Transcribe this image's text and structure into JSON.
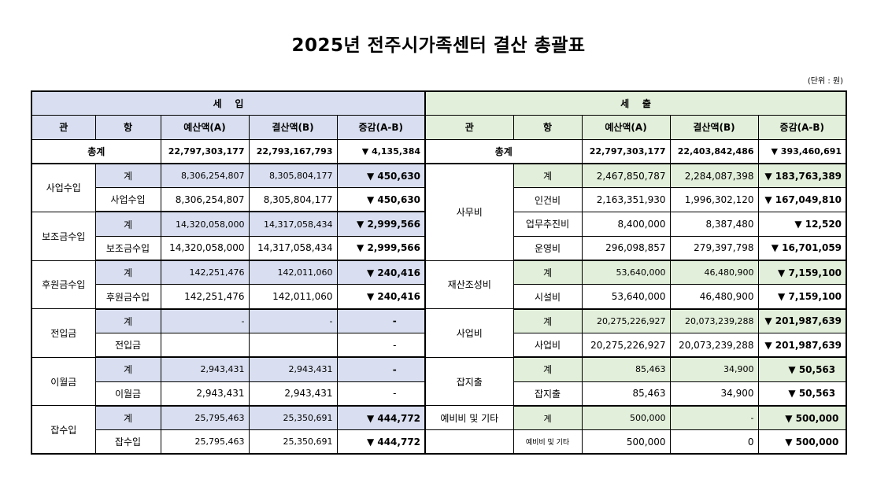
{
  "title": "2025년 전주시가족센터 결산 총괄표",
  "unit": "(단위 : 원)",
  "income": {
    "header": "세    입",
    "cols": [
      "관",
      "항",
      "예산액(A)",
      "결산액(B)",
      "증감(A-B)"
    ],
    "total": {
      "label": "총계",
      "budget": "22,797,303,177",
      "settled": "22,793,167,793",
      "diff": "▼ 4,135,384"
    },
    "groups": [
      {
        "gwan": "사업수입",
        "sub": {
          "hang": "계",
          "budget": "8,306,254,807",
          "settled": "8,305,804,177",
          "diff": "▼ 450,630"
        },
        "item": {
          "hang": "사업수입",
          "budget": "8,306,254,807",
          "settled": "8,305,804,177",
          "diff": "▼ 450,630"
        }
      },
      {
        "gwan": "보조금수입",
        "sub": {
          "hang": "계",
          "budget": "14,320,058,000",
          "settled": "14,317,058,434",
          "diff": "▼ 2,999,566"
        },
        "item": {
          "hang": "보조금수입",
          "budget": "14,320,058,000",
          "settled": "14,317,058,434",
          "diff": "▼ 2,999,566"
        }
      },
      {
        "gwan": "후원금수입",
        "sub": {
          "hang": "계",
          "budget": "142,251,476",
          "settled": "142,011,060",
          "diff": "▼ 240,416"
        },
        "item": {
          "hang": "후원금수입",
          "budget": "142,251,476",
          "settled": "142,011,060",
          "diff": "▼ 240,416"
        }
      },
      {
        "gwan": "전입금",
        "sub": {
          "hang": "계",
          "budget": "-",
          "settled": "-",
          "diff": "-"
        },
        "item": {
          "hang": "전입금",
          "budget": "",
          "settled": "",
          "diff": "-"
        }
      },
      {
        "gwan": "이월금",
        "sub": {
          "hang": "계",
          "budget": "2,943,431",
          "settled": "2,943,431",
          "diff": "-"
        },
        "item": {
          "hang": "이월금",
          "budget": "2,943,431",
          "settled": "2,943,431",
          "diff": "-"
        }
      },
      {
        "gwan": "잡수입",
        "sub": {
          "hang": "계",
          "budget": "25,795,463",
          "settled": "25,350,691",
          "diff": "▼ 444,772"
        },
        "item": {
          "hang": "잡수입",
          "budget": "25,795,463",
          "settled": "25,350,691",
          "diff": "▼ 444,772"
        }
      }
    ]
  },
  "expense": {
    "header": "세    출",
    "cols": [
      "관",
      "항",
      "예산액(A)",
      "결산액(B)",
      "증감(A-B)"
    ],
    "total": {
      "label": "총계",
      "budget": "22,797,303,177",
      "settled": "22,403,842,486",
      "diff": "▼ 393,460,691"
    },
    "office": {
      "gwan": "사무비",
      "rows": [
        {
          "hang": "계",
          "budget": "2,467,850,787",
          "settled": "2,284,087,398",
          "diff": "▼ 183,763,389"
        },
        {
          "hang": "인건비",
          "budget": "2,163,351,930",
          "settled": "1,996,302,120",
          "diff": "▼ 167,049,810"
        },
        {
          "hang": "업무추진비",
          "budget": "8,400,000",
          "settled": "8,387,480",
          "diff": "▼ 12,520"
        },
        {
          "hang": "운영비",
          "budget": "296,098,857",
          "settled": "279,397,798",
          "diff": "▼ 16,701,059"
        }
      ]
    },
    "groups": [
      {
        "gwan": "재산조성비",
        "sub": {
          "hang": "계",
          "budget": "53,640,000",
          "settled": "46,480,900",
          "diff": "▼ 7,159,100"
        },
        "item": {
          "hang": "시설비",
          "budget": "53,640,000",
          "settled": "46,480,900",
          "diff": "▼ 7,159,100"
        }
      },
      {
        "gwan": "사업비",
        "sub": {
          "hang": "계",
          "budget": "20,275,226,927",
          "settled": "20,073,239,288",
          "diff": "▼ 201,987,639"
        },
        "item": {
          "hang": "사업비",
          "budget": "20,275,226,927",
          "settled": "20,073,239,288",
          "diff": "▼ 201,987,639"
        }
      },
      {
        "gwan": "잡지출",
        "sub": {
          "hang": "계",
          "budget": "85,463",
          "settled": "34,900",
          "diff": "▼ 50,563"
        },
        "item": {
          "hang": "잡지출",
          "budget": "85,463",
          "settled": "34,900",
          "diff": "▼ 50,563"
        }
      }
    ],
    "reserve": {
      "sub": {
        "gwan": "예비비 및 기타",
        "hang": "계",
        "budget": "500,000",
        "settled": "-",
        "diff": "▼ 500,000"
      },
      "item": {
        "gwan": "",
        "hang": "예비비 및 기타",
        "budget": "500,000",
        "settled": "0",
        "diff": "▼ 500,000"
      }
    }
  }
}
